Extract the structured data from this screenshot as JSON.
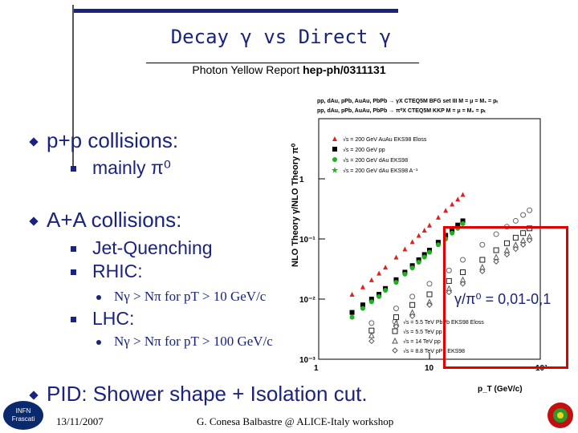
{
  "title": "Decay γ vs Direct γ",
  "subtitle_prefix": "Photon Yellow Report",
  "subtitle_ref": "hep-ph/0311131",
  "bullets": {
    "pp": "p+p collisions:",
    "pp_sub": "mainly π⁰",
    "aa": "A+A collisions:",
    "aa_sub1": "Jet-Quenching",
    "aa_sub2": "RHIC:",
    "rhic_detail": "Nγ > Nπ for pT > 10 GeV/c",
    "aa_sub3": "LHC:",
    "lhc_detail": "Nγ > Nπ for pT > 100 GeV/c",
    "pid": "PID: Shower shape + Isolation cut."
  },
  "ratio_label": "γ/π⁰ = 0,01-0,1",
  "footer": {
    "date": "13/11/2007",
    "credit": "G. Conesa Balbastre @ ALICE-Italy workshop",
    "logo_line1": "INFN",
    "logo_line2": "Frascati"
  },
  "chart_data": {
    "type": "scatter",
    "title": "pp, dAu, pPb, AuAu, PbPb → γX CTEQ5M BFG set III M = μ = M₁ = pₜ / pp, dAu, pPb, AuAu, PbPb → π⁰X CTEQ5M KKP M = μ = M₂ = pₜ",
    "xlabel": "p_T (GeV/c)",
    "ylabel": "NLO Theory γ/NLO Theory π⁰",
    "xscale": "log",
    "yscale": "log",
    "xlim": [
      1,
      100
    ],
    "ylim": [
      0.001,
      10
    ],
    "yticks": [
      "1",
      "10⁻¹",
      "10⁻²",
      "10⁻³"
    ],
    "xticks": [
      "1",
      "10",
      "10²"
    ],
    "legend_placement": "top",
    "legend_top": [
      {
        "label": "√s = 200 GeV AuAu EKS98 Eloss",
        "color": "#e02020",
        "marker": "triangle"
      },
      {
        "label": "√s = 200 GeV pp",
        "color": "#000000",
        "marker": "square"
      },
      {
        "label": "√s = 200 GeV dAu EKS98",
        "color": "#20b020",
        "marker": "circle"
      },
      {
        "label": "√s = 200 GeV dAu EKS98 A⁻¹",
        "color": "#20b020",
        "marker": "star"
      }
    ],
    "legend_bottom": [
      {
        "label": "√s = 5.5 TeV PbPb EKS98 Eloss",
        "color": "#777777",
        "marker": "circle-open"
      },
      {
        "label": "√s = 5.5 TeV pp",
        "color": "#222222",
        "marker": "square-open"
      },
      {
        "label": "√s = 14 TeV pp",
        "color": "#555555",
        "marker": "triangle-open"
      },
      {
        "label": "√s = 8.8 TeV pPb EKS98",
        "color": "#555555",
        "marker": "diamond-open"
      }
    ],
    "series": [
      {
        "name": "AuAu 200 Eloss",
        "color": "#e02020",
        "marker": "triangle",
        "x": [
          2,
          2.5,
          3,
          3.5,
          4,
          5,
          6,
          7,
          8,
          9,
          10,
          12,
          14,
          16,
          18,
          20
        ],
        "y": [
          0.012,
          0.016,
          0.021,
          0.027,
          0.034,
          0.05,
          0.068,
          0.09,
          0.115,
          0.14,
          0.17,
          0.23,
          0.3,
          0.38,
          0.46,
          0.55
        ]
      },
      {
        "name": "pp 200",
        "color": "#000000",
        "marker": "square",
        "x": [
          2,
          2.5,
          3,
          3.5,
          4,
          5,
          6,
          7,
          8,
          9,
          10,
          12,
          14,
          16,
          18,
          20
        ],
        "y": [
          0.006,
          0.008,
          0.01,
          0.012,
          0.015,
          0.021,
          0.028,
          0.036,
          0.045,
          0.055,
          0.065,
          0.088,
          0.115,
          0.14,
          0.17,
          0.2
        ]
      },
      {
        "name": "dAu 200",
        "color": "#20b020",
        "marker": "circle",
        "x": [
          2,
          2.5,
          3,
          3.5,
          4,
          5,
          6,
          7,
          8,
          9,
          10,
          12,
          14,
          16,
          18,
          20
        ],
        "y": [
          0.005,
          0.007,
          0.009,
          0.011,
          0.014,
          0.019,
          0.026,
          0.033,
          0.041,
          0.05,
          0.06,
          0.08,
          0.1,
          0.125,
          0.15,
          0.18
        ]
      },
      {
        "name": "PbPb 5.5 Eloss",
        "color": "#666666",
        "marker": "circle-open",
        "x": [
          3,
          5,
          7,
          10,
          15,
          20,
          30,
          40,
          50,
          60,
          70,
          80
        ],
        "y": [
          0.004,
          0.007,
          0.011,
          0.018,
          0.03,
          0.045,
          0.08,
          0.12,
          0.16,
          0.2,
          0.25,
          0.3
        ]
      },
      {
        "name": "pp 5.5",
        "color": "#222222",
        "marker": "square-open",
        "x": [
          3,
          5,
          7,
          10,
          15,
          20,
          30,
          40,
          50,
          60,
          70,
          80
        ],
        "y": [
          0.003,
          0.005,
          0.008,
          0.012,
          0.02,
          0.028,
          0.045,
          0.065,
          0.085,
          0.105,
          0.125,
          0.15
        ]
      },
      {
        "name": "pp 14",
        "color": "#555555",
        "marker": "triangle-open",
        "x": [
          3,
          5,
          7,
          10,
          15,
          20,
          30,
          40,
          50,
          60,
          70,
          80
        ],
        "y": [
          0.0025,
          0.004,
          0.006,
          0.009,
          0.015,
          0.021,
          0.034,
          0.05,
          0.065,
          0.08,
          0.095,
          0.11
        ]
      },
      {
        "name": "pPb 8.8",
        "color": "#555555",
        "marker": "diamond-open",
        "x": [
          3,
          5,
          7,
          10,
          15,
          20,
          30,
          40,
          50,
          60,
          70,
          80
        ],
        "y": [
          0.002,
          0.0035,
          0.0052,
          0.008,
          0.013,
          0.018,
          0.029,
          0.042,
          0.055,
          0.068,
          0.08,
          0.095
        ]
      }
    ]
  },
  "colors": {
    "text": "#1a237e",
    "highlight": "#e00000"
  }
}
